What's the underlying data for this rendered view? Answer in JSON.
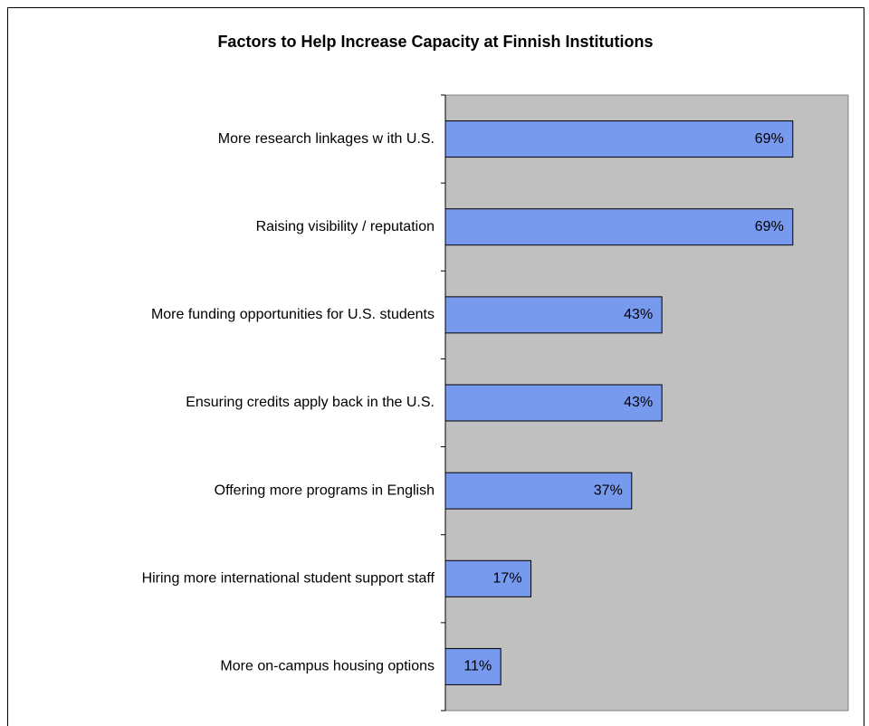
{
  "chart_data": {
    "type": "hbar",
    "title": "Factors to Help Increase Capacity at Finnish Institutions",
    "categories": [
      "More research linkages w ith U.S.",
      "Raising visibility / reputation",
      "More funding opportunities for U.S. students",
      "Ensuring credits apply back in the U.S.",
      "Offering more programs in English",
      "Hiring more international student support staff",
      "More on-campus housing options"
    ],
    "values": [
      69,
      69,
      43,
      43,
      37,
      17,
      11
    ],
    "value_labels": [
      "69%",
      "69%",
      "43%",
      "43%",
      "37%",
      "17%",
      "11%"
    ],
    "color": "#7799ee",
    "xlim": [
      0,
      80
    ]
  }
}
